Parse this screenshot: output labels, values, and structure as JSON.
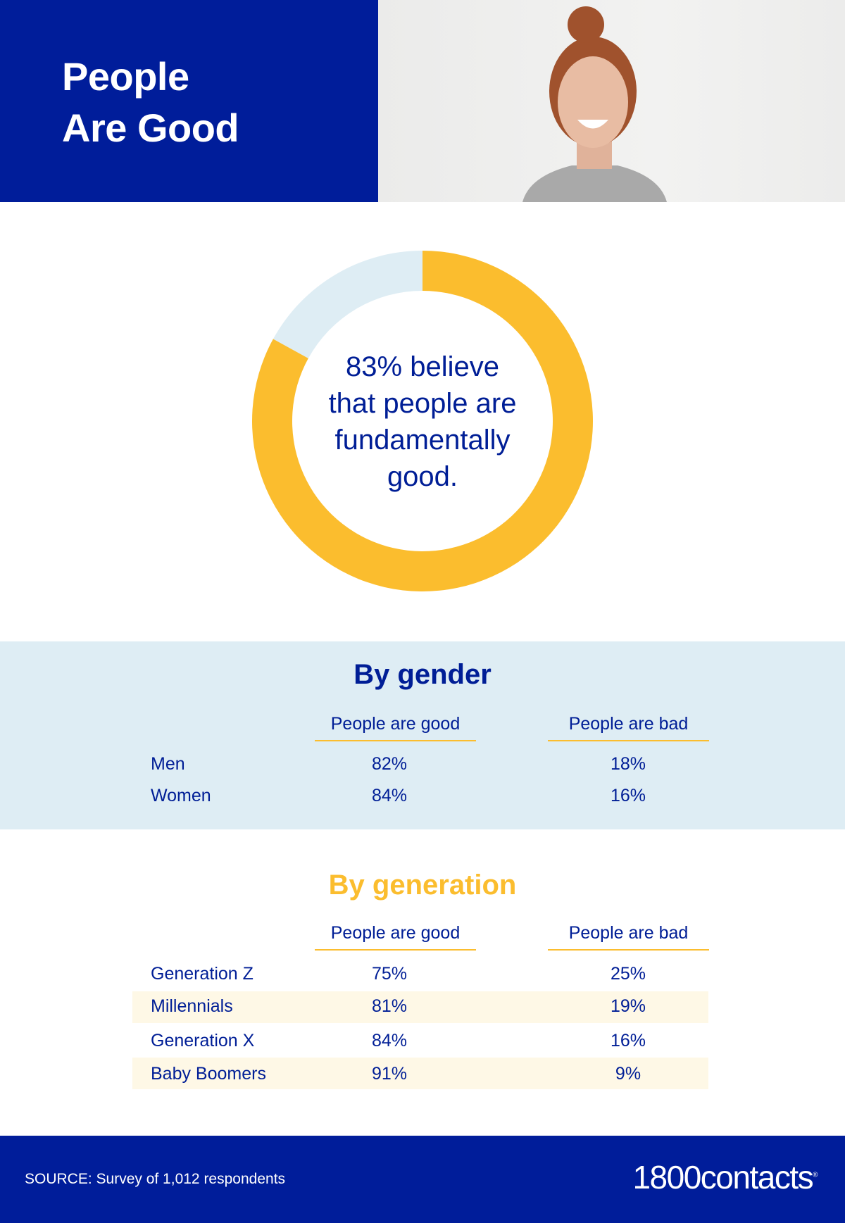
{
  "header": {
    "title_line1": "People",
    "title_line2": "Are Good"
  },
  "chart_data": {
    "type": "pie",
    "donut": true,
    "slices": [
      {
        "label": "People are good",
        "value": 83,
        "color": "#fbbd2e"
      },
      {
        "label": "People are bad",
        "value": 17,
        "color": "#deedf4"
      }
    ],
    "center_text": [
      "83% believe",
      "that people are",
      "fundamentally",
      "good."
    ]
  },
  "by_gender": {
    "title": "By gender",
    "columns": [
      "People are good",
      "People are bad"
    ],
    "rows": [
      {
        "label": "Men",
        "good": "82%",
        "bad": "18%"
      },
      {
        "label": "Women",
        "good": "84%",
        "bad": "16%"
      }
    ]
  },
  "by_generation": {
    "title": "By generation",
    "title_color": "#fbbd2e",
    "columns": [
      "People are good",
      "People are bad"
    ],
    "rows": [
      {
        "label": "Generation Z",
        "good": "75%",
        "bad": "25%"
      },
      {
        "label": "Millennials",
        "good": "81%",
        "bad": "19%"
      },
      {
        "label": "Generation X",
        "good": "84%",
        "bad": "16%"
      },
      {
        "label": "Baby Boomers",
        "good": "91%",
        "bad": "9%"
      }
    ]
  },
  "footer": {
    "source": "SOURCE: Survey of 1,012 respondents",
    "logo": "1800contacts"
  },
  "colors": {
    "brand_blue": "#001d9a",
    "accent_yellow": "#fbbd2e",
    "light_blue": "#deedf4"
  }
}
